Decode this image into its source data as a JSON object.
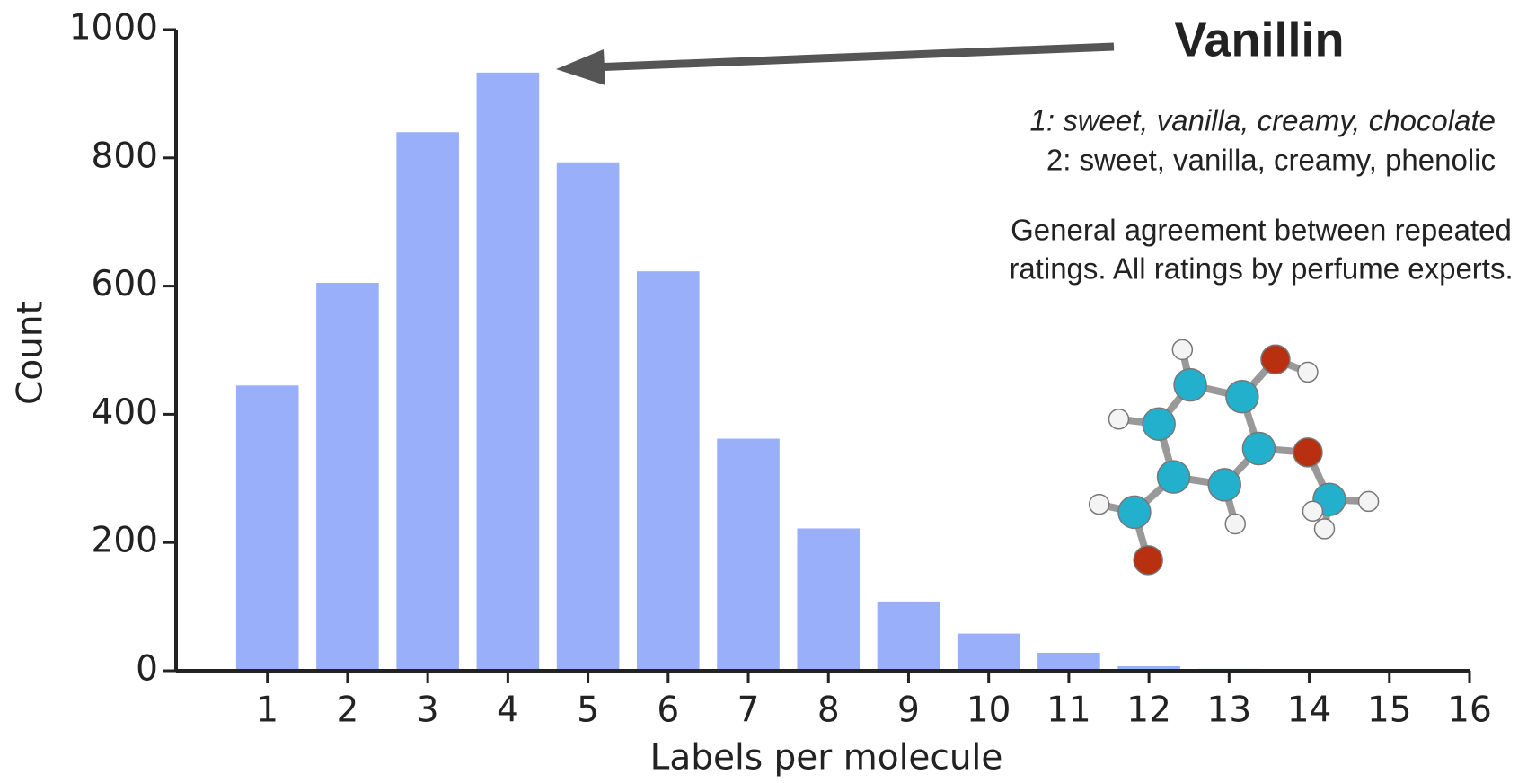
{
  "chart_data": {
    "type": "bar",
    "x": [
      1,
      2,
      3,
      4,
      5,
      6,
      7,
      8,
      9,
      10,
      11,
      12,
      13
    ],
    "values": [
      445,
      605,
      840,
      933,
      793,
      623,
      362,
      222,
      108,
      58,
      28,
      7,
      3
    ],
    "color": "#9aaffa",
    "xlim": [
      -0.14,
      16
    ],
    "xticks": [
      1,
      2,
      3,
      4,
      5,
      6,
      7,
      8,
      9,
      10,
      11,
      12,
      13,
      14,
      15,
      16
    ],
    "ylim": [
      0,
      1000
    ],
    "yticks": [
      0,
      200,
      400,
      600,
      800,
      1000
    ],
    "xlabel": "Labels per molecule",
    "ylabel": "Count",
    "annotations": [
      "Vanillin",
      "1: sweet, vanilla, creamy, chocolate",
      "2: sweet, vanilla, creamy, phenolic",
      "General agreement between repeated",
      "ratings. All ratings by perfume experts."
    ]
  }
}
